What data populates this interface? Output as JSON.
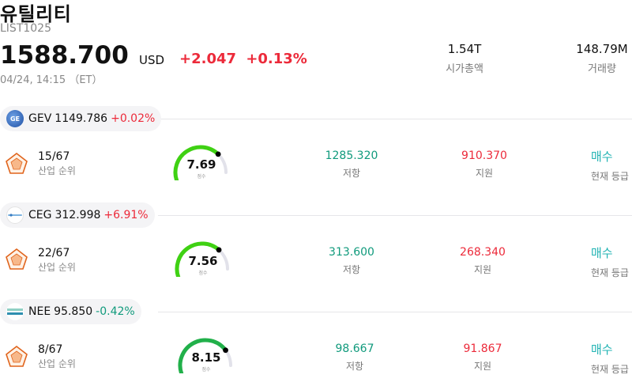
{
  "header": {
    "title": "유틸리티",
    "code": "LIST1025",
    "price": "1588.700",
    "currency": "USD",
    "change_abs": "+2.047",
    "change_pct": "+0.13%",
    "timestamp": "04/24, 14:15 （ET）",
    "market_cap_value": "1.54T",
    "market_cap_label": "시가총액",
    "volume_value": "148.79M",
    "volume_label": "거래량"
  },
  "stocks": [
    {
      "symbol": "GEV",
      "price": "1149.786",
      "change": "+0.02%",
      "direction": "up",
      "logo_text": "GE",
      "rank": "15/67",
      "rank_label": "산업 순위",
      "score": "7.69",
      "score_value": 7.69,
      "score_label": "점수",
      "resistance": "1285.320",
      "resistance_label": "저항",
      "support": "910.370",
      "support_label": "지원",
      "rating": "매수",
      "rating_label": "현재 등급",
      "gauge_color": "#3fd113"
    },
    {
      "symbol": "CEG",
      "price": "312.998",
      "change": "+6.91%",
      "direction": "up",
      "logo_text": "",
      "rank": "22/67",
      "rank_label": "산업 순위",
      "score": "7.56",
      "score_value": 7.56,
      "score_label": "점수",
      "resistance": "313.600",
      "resistance_label": "저항",
      "support": "268.340",
      "support_label": "지원",
      "rating": "매수",
      "rating_label": "현재 등급",
      "gauge_color": "#3fd113"
    },
    {
      "symbol": "NEE",
      "price": "95.850",
      "change": "-0.42%",
      "direction": "down",
      "logo_text": "",
      "rank": "8/67",
      "rank_label": "산업 순위",
      "score": "8.15",
      "score_value": 8.15,
      "score_label": "점수",
      "resistance": "98.667",
      "resistance_label": "저항",
      "support": "91.867",
      "support_label": "지원",
      "rating": "매수",
      "rating_label": "현재 등급",
      "gauge_color": "#21b04a"
    }
  ],
  "colors": {
    "up": "#ec2a3a",
    "down": "#109a7c",
    "rating": "#21b3b3",
    "gauge_track": "#e2e2ea",
    "rank_icon": "#e0641c"
  },
  "icons": {
    "rank_icon": "pentagon-radar-icon",
    "gauge_marker": "dot-marker-icon"
  }
}
